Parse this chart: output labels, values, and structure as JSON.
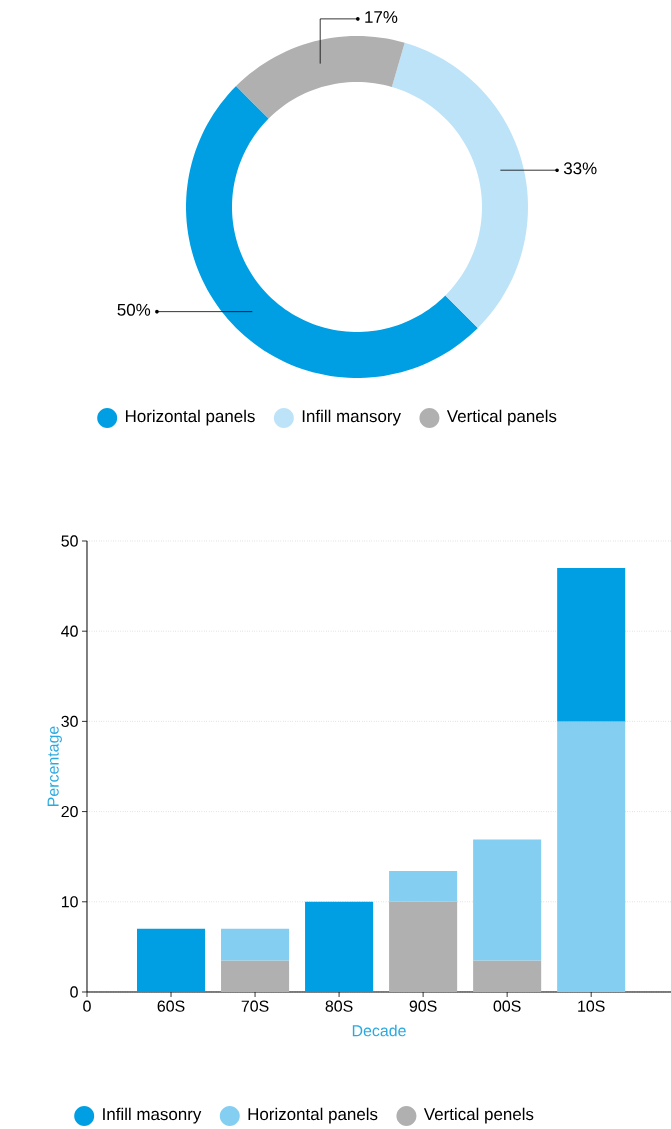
{
  "chart_data": [
    {
      "type": "donut",
      "categories": [
        "Horizontal panels",
        "Infill mansory",
        "Vertical panels"
      ],
      "values": [
        50,
        33,
        17
      ],
      "colors": [
        "#009fe3",
        "#bde3f8",
        "#b0b0b0"
      ],
      "value_labels": [
        "50%",
        "33%",
        "17%"
      ],
      "legend": "bottom"
    },
    {
      "type": "bar",
      "stacked": true,
      "categories": [
        "0",
        "60S",
        "70S",
        "80S",
        "90S",
        "00S",
        "10S"
      ],
      "series": [
        {
          "name": "Vertical penels",
          "color": "#b0b0b0",
          "values": [
            null,
            null,
            3.5,
            null,
            10,
            3.5,
            null
          ]
        },
        {
          "name": "Horizontal panels",
          "color": "#84cef2",
          "values": [
            null,
            null,
            3.5,
            null,
            3.4,
            13.4,
            30
          ]
        },
        {
          "name": "Infill masonry",
          "color": "#009fe3",
          "values": [
            null,
            7,
            null,
            10,
            null,
            null,
            17
          ]
        }
      ],
      "ylim": [
        0,
        50
      ],
      "yticks": [
        0,
        10,
        20,
        30,
        40,
        50
      ],
      "xlabel": "Decade",
      "ylabel": "Percentage",
      "grid": "y",
      "legend": "bottom"
    }
  ]
}
